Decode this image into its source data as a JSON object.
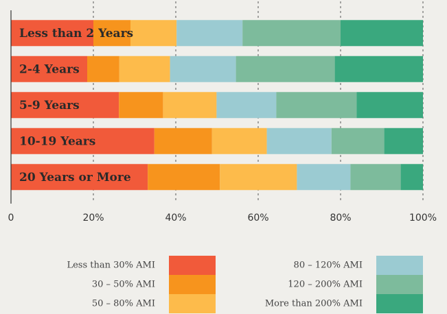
{
  "chart_data": {
    "type": "stacked-bar-horizontal",
    "categories": [
      "Less than 2 Years",
      "2-4 Years",
      "5-9 Years",
      "10-19 Years",
      "20 Years or More"
    ],
    "series": [
      {
        "name": "Less than 30% AMI",
        "color": "#f15a3a",
        "values": [
          20,
          18.5,
          26.2,
          34.8,
          33.2
        ]
      },
      {
        "name": "30 – 50% AMI",
        "color": "#f7941d",
        "values": [
          9,
          7.8,
          10.7,
          14,
          17.5
        ]
      },
      {
        "name": "50 – 80% AMI",
        "color": "#fdbb4b",
        "values": [
          11.2,
          12.3,
          13,
          13.3,
          18.7
        ]
      },
      {
        "name": "80 – 120% AMI",
        "color": "#9bcbd2",
        "values": [
          16,
          16,
          14.5,
          15.7,
          13
        ]
      },
      {
        "name": "120 – 200% AMI",
        "color": "#7dbb9c",
        "values": [
          23.8,
          24,
          19.5,
          12.8,
          12.2
        ]
      },
      {
        "name": "More than 200% AMI",
        "color": "#3aa87e",
        "values": [
          20,
          21.4,
          16.1,
          9.4,
          5.4
        ]
      }
    ],
    "xlim": [
      0,
      100
    ],
    "xticks": [
      0,
      {
        "value": 20,
        "label": "20%"
      },
      {
        "value": 40,
        "label": "40%"
      },
      {
        "value": 60,
        "label": "60%"
      },
      {
        "value": 80,
        "label": "80%"
      },
      {
        "value": 100,
        "label": "100%"
      }
    ],
    "grid": true,
    "legend": "bottom"
  }
}
